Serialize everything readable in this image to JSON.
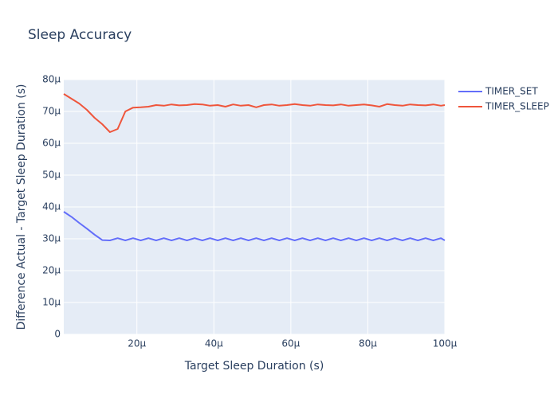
{
  "chart_data": {
    "type": "line",
    "title": "Sleep Accuracy",
    "xlabel": "Target Sleep Duration (s)",
    "ylabel": "Difference Actual - Target Sleep Duration (s)",
    "x": [
      1e-06,
      3e-06,
      5e-06,
      7e-06,
      9e-06,
      1.1e-05,
      1.3e-05,
      1.5e-05,
      1.7e-05,
      1.9e-05,
      2.1e-05,
      2.3e-05,
      2.5e-05,
      2.7e-05,
      2.9e-05,
      3.1e-05,
      3.3e-05,
      3.5e-05,
      3.7e-05,
      3.9e-05,
      4.1e-05,
      4.3e-05,
      4.5e-05,
      4.7e-05,
      4.9e-05,
      5.1e-05,
      5.3e-05,
      5.5e-05,
      5.7e-05,
      5.9e-05,
      6.1e-05,
      6.3e-05,
      6.5e-05,
      6.7e-05,
      6.9e-05,
      7.1e-05,
      7.3e-05,
      7.5e-05,
      7.7e-05,
      7.9e-05,
      8.1e-05,
      8.3e-05,
      8.5e-05,
      8.7e-05,
      8.9e-05,
      9.1e-05,
      9.3e-05,
      9.5e-05,
      9.7e-05,
      9.9e-05,
      0.0001
    ],
    "series": [
      {
        "name": "TIMER_SET",
        "color": "#636efa",
        "values": [
          3.85e-05,
          3.69e-05,
          3.5e-05,
          3.32e-05,
          3.13e-05,
          2.96e-05,
          2.95e-05,
          3.02e-05,
          2.95e-05,
          3.02e-05,
          2.95e-05,
          3.02e-05,
          2.95e-05,
          3.02e-05,
          2.95e-05,
          3.02e-05,
          2.95e-05,
          3.02e-05,
          2.95e-05,
          3.02e-05,
          2.95e-05,
          3.02e-05,
          2.95e-05,
          3.02e-05,
          2.95e-05,
          3.02e-05,
          2.95e-05,
          3.02e-05,
          2.95e-05,
          3.02e-05,
          2.95e-05,
          3.02e-05,
          2.95e-05,
          3.02e-05,
          2.95e-05,
          3.02e-05,
          2.95e-05,
          3.02e-05,
          2.95e-05,
          3.02e-05,
          2.95e-05,
          3.02e-05,
          2.95e-05,
          3.02e-05,
          2.95e-05,
          3.02e-05,
          2.95e-05,
          3.02e-05,
          2.95e-05,
          3.02e-05,
          2.95e-05
        ]
      },
      {
        "name": "TIMER_SLEEP",
        "color": "#ef553b",
        "values": [
          7.55e-05,
          7.4e-05,
          7.25e-05,
          7.05e-05,
          6.8e-05,
          6.6e-05,
          6.35e-05,
          6.45e-05,
          7e-05,
          7.12e-05,
          7.13e-05,
          7.15e-05,
          7.2e-05,
          7.18e-05,
          7.22e-05,
          7.19e-05,
          7.2e-05,
          7.23e-05,
          7.22e-05,
          7.18e-05,
          7.2e-05,
          7.15e-05,
          7.22e-05,
          7.18e-05,
          7.2e-05,
          7.13e-05,
          7.2e-05,
          7.22e-05,
          7.18e-05,
          7.2e-05,
          7.23e-05,
          7.2e-05,
          7.18e-05,
          7.22e-05,
          7.2e-05,
          7.19e-05,
          7.22e-05,
          7.18e-05,
          7.2e-05,
          7.22e-05,
          7.19e-05,
          7.15e-05,
          7.23e-05,
          7.2e-05,
          7.18e-05,
          7.22e-05,
          7.2e-05,
          7.19e-05,
          7.22e-05,
          7.18e-05,
          7.2e-05
        ]
      }
    ],
    "xlim": [
      1e-06,
      0.0001
    ],
    "xticks": [
      {
        "value": 2e-05,
        "label": "20µ"
      },
      {
        "value": 4e-05,
        "label": "40µ"
      },
      {
        "value": 6e-05,
        "label": "60µ"
      },
      {
        "value": 8e-05,
        "label": "80µ"
      },
      {
        "value": 0.0001,
        "label": "100µ"
      }
    ],
    "ylim": [
      0,
      8e-05
    ],
    "yticks": [
      0,
      {
        "value": 1e-05,
        "label": "10µ"
      },
      {
        "value": 2e-05,
        "label": "20µ"
      },
      {
        "value": 3e-05,
        "label": "30µ"
      },
      {
        "value": 4e-05,
        "label": "40µ"
      },
      {
        "value": 5e-05,
        "label": "50µ"
      },
      {
        "value": 6e-05,
        "label": "60µ"
      },
      {
        "value": 7e-05,
        "label": "70µ"
      },
      {
        "value": 8e-05,
        "label": "80µ"
      }
    ],
    "grid": true,
    "legend": "right"
  }
}
